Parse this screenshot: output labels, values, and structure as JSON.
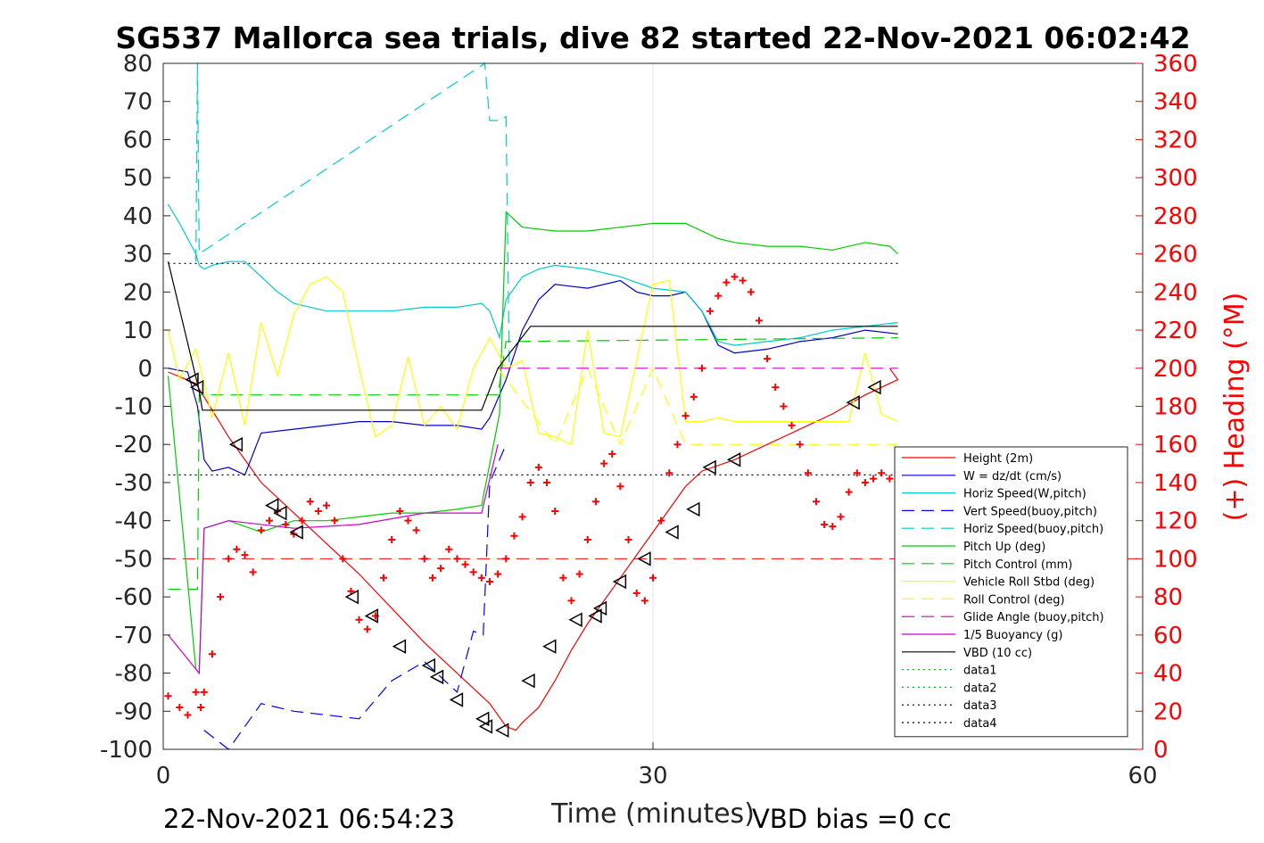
{
  "chart_data": {
    "type": "line",
    "title": "SG537 Mallorca sea trials, dive 82 started 22-Nov-2021 06:02:42",
    "xlabel": "Time (minutes)",
    "ylabel": "",
    "y2label": "(+) Heading (°M)",
    "xlim": [
      0,
      60
    ],
    "ylim": [
      -100,
      80
    ],
    "y2lim": [
      0,
      360
    ],
    "xticks": [
      "0",
      "30",
      "60"
    ],
    "yticks": [
      "80",
      "70",
      "60",
      "50",
      "40",
      "30",
      "20",
      "10",
      "0",
      "-10",
      "-20",
      "-30",
      "-40",
      "-50",
      "-60",
      "-70",
      "-80",
      "-90",
      "-100"
    ],
    "y2ticks": [
      "360",
      "340",
      "320",
      "300",
      "280",
      "260",
      "240",
      "220",
      "200",
      "180",
      "160",
      "140",
      "120",
      "100",
      "80",
      "60",
      "40",
      "20",
      "0"
    ],
    "grid": true,
    "legend_position": "lower-right",
    "footer_left": "22-Nov-2021 06:54:23",
    "footer_right": "VBD bias =0 cc",
    "series": [
      {
        "name": "Height (2m)",
        "color": "#ff0000",
        "style": "solid",
        "x": [
          0.3,
          2,
          4,
          6,
          8,
          10,
          12,
          14,
          16,
          18,
          20,
          21,
          21.6,
          22,
          23,
          24,
          25,
          26,
          27,
          28,
          29,
          30,
          31,
          32,
          33,
          35,
          37,
          39,
          41,
          43,
          45,
          44.5
        ],
        "y": [
          -1,
          -4,
          -18,
          -30,
          -38,
          -46,
          -54,
          -63,
          -72,
          -80,
          -88,
          -94,
          -95,
          -93,
          -89,
          -82,
          -74,
          -67,
          -61,
          -55,
          -49,
          -43,
          -37,
          -31,
          -27,
          -24,
          -20,
          -16,
          -12,
          -7,
          -3,
          0
        ]
      },
      {
        "name": "W = dz/dt (cm/s)",
        "color": "#0000cc",
        "style": "solid",
        "x": [
          0.3,
          1.5,
          2.1,
          2.5,
          3,
          4,
          5,
          6,
          8,
          10,
          12,
          14,
          16,
          18,
          19.5,
          20,
          21,
          22,
          23,
          24,
          26,
          28,
          29,
          30,
          31,
          32,
          33,
          34,
          35,
          37,
          39,
          41,
          43,
          45
        ],
        "y": [
          0,
          -1,
          -10,
          -24,
          -27,
          -26,
          -28,
          -17,
          -16,
          -15,
          -14,
          -14,
          -15,
          -15,
          -16,
          -13,
          -3,
          10,
          18,
          22,
          21,
          23,
          20,
          19,
          19,
          20,
          15,
          6,
          4,
          5,
          7,
          8,
          10,
          9
        ]
      },
      {
        "name": "Horiz Speed(W,pitch)",
        "color": "#00cccc",
        "style": "solid",
        "x": [
          0.3,
          1,
          2,
          2.2,
          2.5,
          3,
          4,
          5,
          6,
          7,
          8,
          10,
          12,
          14,
          16,
          18,
          19.5,
          20,
          20.6,
          21,
          22,
          23,
          24,
          26,
          28,
          30,
          32,
          33,
          34,
          35,
          37,
          39,
          41,
          43,
          45
        ],
        "y": [
          43,
          38,
          30,
          27,
          26,
          27,
          28,
          28,
          24,
          20,
          17,
          15,
          15,
          15,
          16,
          16,
          17,
          15,
          8,
          18,
          24,
          26,
          27,
          26,
          24,
          21,
          20,
          15,
          7,
          6,
          7,
          8,
          10,
          11,
          12
        ]
      },
      {
        "name": "Vert Speed(buoy,pitch)",
        "color": "#0000ff",
        "style": "dashed",
        "x": [
          2.5,
          4,
          6,
          8,
          10,
          12,
          14,
          16,
          18,
          19,
          19.6,
          20,
          21
        ],
        "y": [
          -95,
          -100,
          -88,
          -90,
          -91,
          -92,
          -82,
          -77,
          -85,
          -69,
          -70,
          -30,
          -20
        ]
      },
      {
        "name": "Horiz Speed(buoy,pitch)",
        "color": "#00cccc",
        "style": "dashed",
        "x": [
          2,
          2.1,
          2.2,
          19.7,
          20,
          20.6,
          21,
          21.2
        ],
        "y": [
          28,
          80,
          30,
          80,
          65,
          65,
          66,
          0
        ]
      },
      {
        "name": "Pitch Up (deg)",
        "color": "#00cc00",
        "style": "solid",
        "x": [
          0.3,
          2,
          2.2,
          2.5,
          4,
          6,
          8,
          10,
          12,
          14,
          16,
          18,
          19.5,
          20.6,
          21,
          22,
          24,
          26,
          28,
          30,
          32,
          34,
          35,
          37,
          39,
          41,
          43,
          44.5,
          45
        ],
        "y": [
          -2,
          -79,
          -80,
          -42,
          -40,
          -43,
          -40,
          -40,
          -39,
          -38,
          -38,
          -37,
          -36,
          -12,
          41,
          37,
          36,
          36,
          37,
          38,
          38,
          34,
          33,
          32,
          32,
          31,
          33,
          32,
          30
        ]
      },
      {
        "name": "Pitch Control (mm)",
        "color": "#00cc00",
        "style": "dashed",
        "x": [
          0.3,
          2.1,
          2.2,
          20.5,
          21,
          45
        ],
        "y": [
          -58,
          -58,
          -7,
          -7,
          7,
          8
        ]
      },
      {
        "name": "Vehicle Roll Stbd (deg)",
        "color": "#ffff00",
        "style": "solid",
        "x": [
          0.3,
          1,
          2,
          3,
          4,
          5,
          6,
          7,
          8,
          9,
          10,
          11,
          12,
          13,
          14,
          15,
          16,
          17,
          18,
          19,
          20,
          21,
          22,
          23,
          24,
          25,
          26,
          27,
          28,
          29,
          30,
          31,
          32,
          33,
          34,
          35,
          37,
          40,
          42,
          43,
          44,
          45
        ],
        "y": [
          10,
          -3,
          5,
          -13,
          4,
          -15,
          12,
          -2,
          14,
          22,
          24,
          20,
          0,
          -18,
          -15,
          3,
          -15,
          -10,
          -16,
          0,
          8,
          0,
          2,
          -17,
          -18,
          -20,
          10,
          -17,
          -18,
          2,
          22,
          23,
          -14,
          -14,
          -13,
          -14,
          -14,
          -14,
          -14,
          4,
          -12,
          -14
        ]
      },
      {
        "name": "Roll Control (deg)",
        "color": "#ffff00",
        "style": "dashed",
        "x": [
          20.5,
          24,
          26,
          28,
          30,
          32,
          34,
          38,
          42,
          45
        ],
        "y": [
          0,
          -20,
          0,
          -20,
          0,
          -20,
          -20,
          -20,
          -20,
          -20
        ]
      },
      {
        "name": "Glide Angle (buoy,pitch)",
        "color": "#cc00cc",
        "style": "dashed",
        "x": [
          20.5,
          45
        ],
        "y": [
          0,
          0
        ]
      },
      {
        "name": "1/5 Buoyancy (g)",
        "color": "#cc00cc",
        "style": "solid",
        "x": [
          0.3,
          2.2,
          2.5,
          4,
          8,
          12,
          16,
          19.5,
          20.5
        ],
        "y": [
          -70,
          -80,
          -42,
          -40,
          -42,
          -41,
          -38,
          -38,
          -20
        ]
      },
      {
        "name": "VBD (10 cc)",
        "color": "#000000",
        "style": "solid",
        "x": [
          0.3,
          2.2,
          2.4,
          4,
          10,
          19.5,
          20.5,
          22.5,
          45
        ],
        "y": [
          28,
          -6,
          -11,
          -11,
          -11,
          -11,
          0,
          11,
          11
        ]
      },
      {
        "name": "data1",
        "color": "#00cc00",
        "style": "dotted",
        "x": [],
        "y": []
      },
      {
        "name": "data2",
        "color": "#00cc00",
        "style": "dotted",
        "x": [],
        "y": []
      },
      {
        "name": "data3",
        "color": "#000000",
        "style": "dotted",
        "x": [
          0.3,
          45
        ],
        "y": [
          27.5,
          27.5
        ]
      },
      {
        "name": "data4",
        "color": "#000000",
        "style": "dotted",
        "x": [
          0.3,
          45
        ],
        "y": [
          -28,
          -28
        ]
      }
    ],
    "reference_lines": [
      {
        "color": "#ff0000",
        "style": "dashed",
        "y": -50
      }
    ],
    "heading_series": {
      "color": "#ff0000",
      "marker": "+",
      "axis": "right",
      "x": [
        0.3,
        1,
        1.5,
        2,
        2.3,
        2.5,
        3,
        3.5,
        4,
        4.5,
        5,
        5.5,
        6,
        6.5,
        7,
        7.5,
        8,
        8.5,
        9,
        9.5,
        10,
        10.5,
        11,
        11.5,
        12,
        12.5,
        13,
        13.5,
        14,
        14.5,
        15,
        15.5,
        16,
        16.5,
        17,
        17.5,
        18,
        18.5,
        19,
        19.5,
        20,
        20.5,
        21,
        21.5,
        22,
        22.5,
        23,
        23.5,
        24,
        24.5,
        25,
        25.5,
        26,
        26.5,
        27,
        27.5,
        28,
        28.5,
        29,
        29.5,
        30,
        30.5,
        31,
        31.5,
        32,
        32.5,
        33,
        33.5,
        34,
        34.5,
        35,
        35.5,
        36,
        36.5,
        37,
        37.5,
        38,
        38.5,
        39,
        39.5,
        40,
        40.5,
        41,
        41.5,
        42,
        42.5,
        43,
        43.5,
        44,
        44.5,
        45
      ],
      "y": [
        28,
        22,
        18,
        30,
        22,
        30,
        50,
        80,
        100,
        105,
        102,
        93,
        115,
        120,
        125,
        118,
        113,
        120,
        130,
        125,
        128,
        120,
        100,
        83,
        68,
        63,
        70,
        90,
        110,
        125,
        120,
        115,
        100,
        90,
        95,
        105,
        100,
        97,
        93,
        90,
        88,
        92,
        100,
        112,
        122,
        140,
        148,
        140,
        125,
        90,
        78,
        92,
        110,
        130,
        150,
        155,
        138,
        110,
        82,
        78,
        90,
        120,
        145,
        160,
        175,
        185,
        200,
        230,
        238,
        245,
        248,
        246,
        240,
        225,
        205,
        190,
        180,
        170,
        160,
        145,
        130,
        118,
        117,
        122,
        135,
        145,
        140,
        142,
        145,
        142,
        140
      ]
    },
    "markers": {
      "symbol": "◁",
      "color": "#000000",
      "x": [
        1.8,
        2.1,
        4.5,
        6.7,
        7.2,
        8.2,
        11.6,
        12.8,
        14.5,
        16.3,
        16.8,
        18,
        19.6,
        19.8,
        20.8,
        22.4,
        23.7,
        25.3,
        26.5,
        26.8,
        28,
        29.5,
        31.2,
        32.5,
        33.5,
        35,
        42.3,
        43.6
      ],
      "y": [
        -3,
        -5,
        -20,
        -36,
        -38,
        -43,
        -60,
        -65,
        -73,
        -78,
        -81,
        -87,
        -92,
        -94,
        -95,
        -82,
        -73,
        -66,
        -65,
        -63,
        -56,
        -50,
        -43,
        -37,
        -26,
        -24,
        -9,
        -5
      ]
    }
  }
}
